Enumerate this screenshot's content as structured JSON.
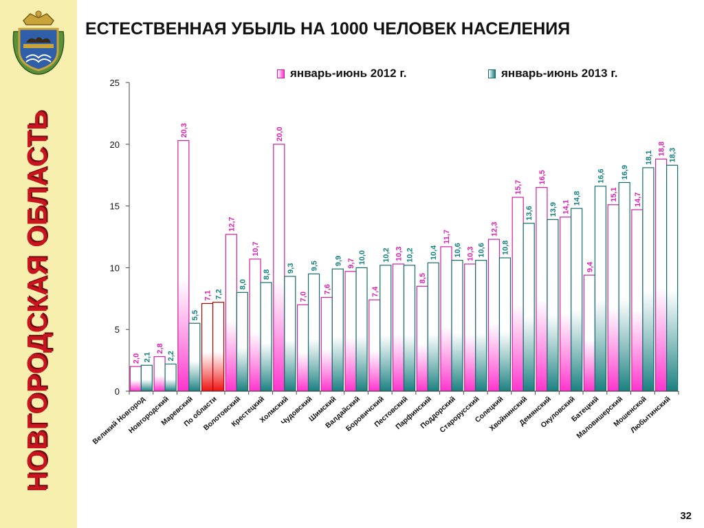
{
  "slide": {
    "title": "ЕСТЕСТВЕННАЯ УБЫЛЬ НА 1000 ЧЕЛОВЕК НАСЕЛЕНИЯ",
    "region": "НОВГОРОДСКАЯ ОБЛАСТЬ",
    "page_number": "32"
  },
  "colors": {
    "series_2012": "#ff33cc",
    "series_2012_edge": "#cc1fa0",
    "series_2013": "#1a8080",
    "series_2013_edge": "#116b6b",
    "highlight": "#ee1111",
    "highlight_edge": "#b30000",
    "label_2012": "#e020b0",
    "label_2013": "#138080",
    "sidebar": "#f6efae",
    "region_text": "#c8141e"
  },
  "emblem": {
    "icon": "coat-of-arms-icon"
  },
  "chart_data": {
    "type": "bar",
    "title": "",
    "xlabel": "",
    "ylabel": "",
    "ylim": [
      0,
      25
    ],
    "yticks": [
      "0",
      "5",
      "10",
      "15",
      "20",
      "25"
    ],
    "grid": false,
    "legend_position": "top-right",
    "highlight_category": "По области",
    "categories": [
      "Великий Новгород",
      "Новгородский",
      "Маревский",
      "По области",
      "Волотовский",
      "Крестецкий",
      "Холмский",
      "Чудовский",
      "Шимский",
      "Валдайский",
      "Боровичский",
      "Пестовский",
      "Парфинский",
      "Поддорский",
      "Старорусский",
      "Солецкий",
      "Хвойнинский",
      "Демянский",
      "Окуловский",
      "Батецкий",
      "Маловишерский",
      "Мошенской",
      "Любытинский"
    ],
    "series": [
      {
        "name": "январь-июнь 2012 г.",
        "values": [
          2.0,
          2.8,
          20.3,
          7.1,
          12.7,
          10.7,
          20.0,
          7.0,
          7.6,
          9.7,
          7.4,
          10.3,
          8.5,
          11.7,
          10.3,
          12.3,
          15.7,
          16.5,
          14.1,
          9.4,
          15.1,
          14.7,
          18.8
        ],
        "labels": [
          "2,0",
          "2,8",
          "20,3",
          "7,1",
          "12,7",
          "10,7",
          "20,0",
          "7,0",
          "7,6",
          "9,7",
          "7,4",
          "10,3",
          "8,5",
          "11,7",
          "10,3",
          "12,3",
          "15,7",
          "16,5",
          "14,1",
          "9,4",
          "15,1",
          "14,7",
          "18,8"
        ]
      },
      {
        "name": "январь-июнь 2013 г.",
        "values": [
          2.1,
          2.2,
          5.5,
          7.2,
          8.0,
          8.8,
          9.3,
          9.5,
          9.9,
          10.0,
          10.2,
          10.2,
          10.4,
          10.6,
          10.6,
          10.8,
          13.6,
          13.9,
          14.8,
          16.6,
          16.9,
          18.1,
          18.3
        ],
        "labels": [
          "2,1",
          "2,2",
          "5,5",
          "7,2",
          "8,0",
          "8,8",
          "9,3",
          "9,5",
          "9,9",
          "10,0",
          "10,2",
          "10,2",
          "10,4",
          "10,6",
          "10,6",
          "10,8",
          "13,6",
          "13,9",
          "14,8",
          "16,6",
          "16,9",
          "18,1",
          "18,3"
        ]
      }
    ]
  }
}
